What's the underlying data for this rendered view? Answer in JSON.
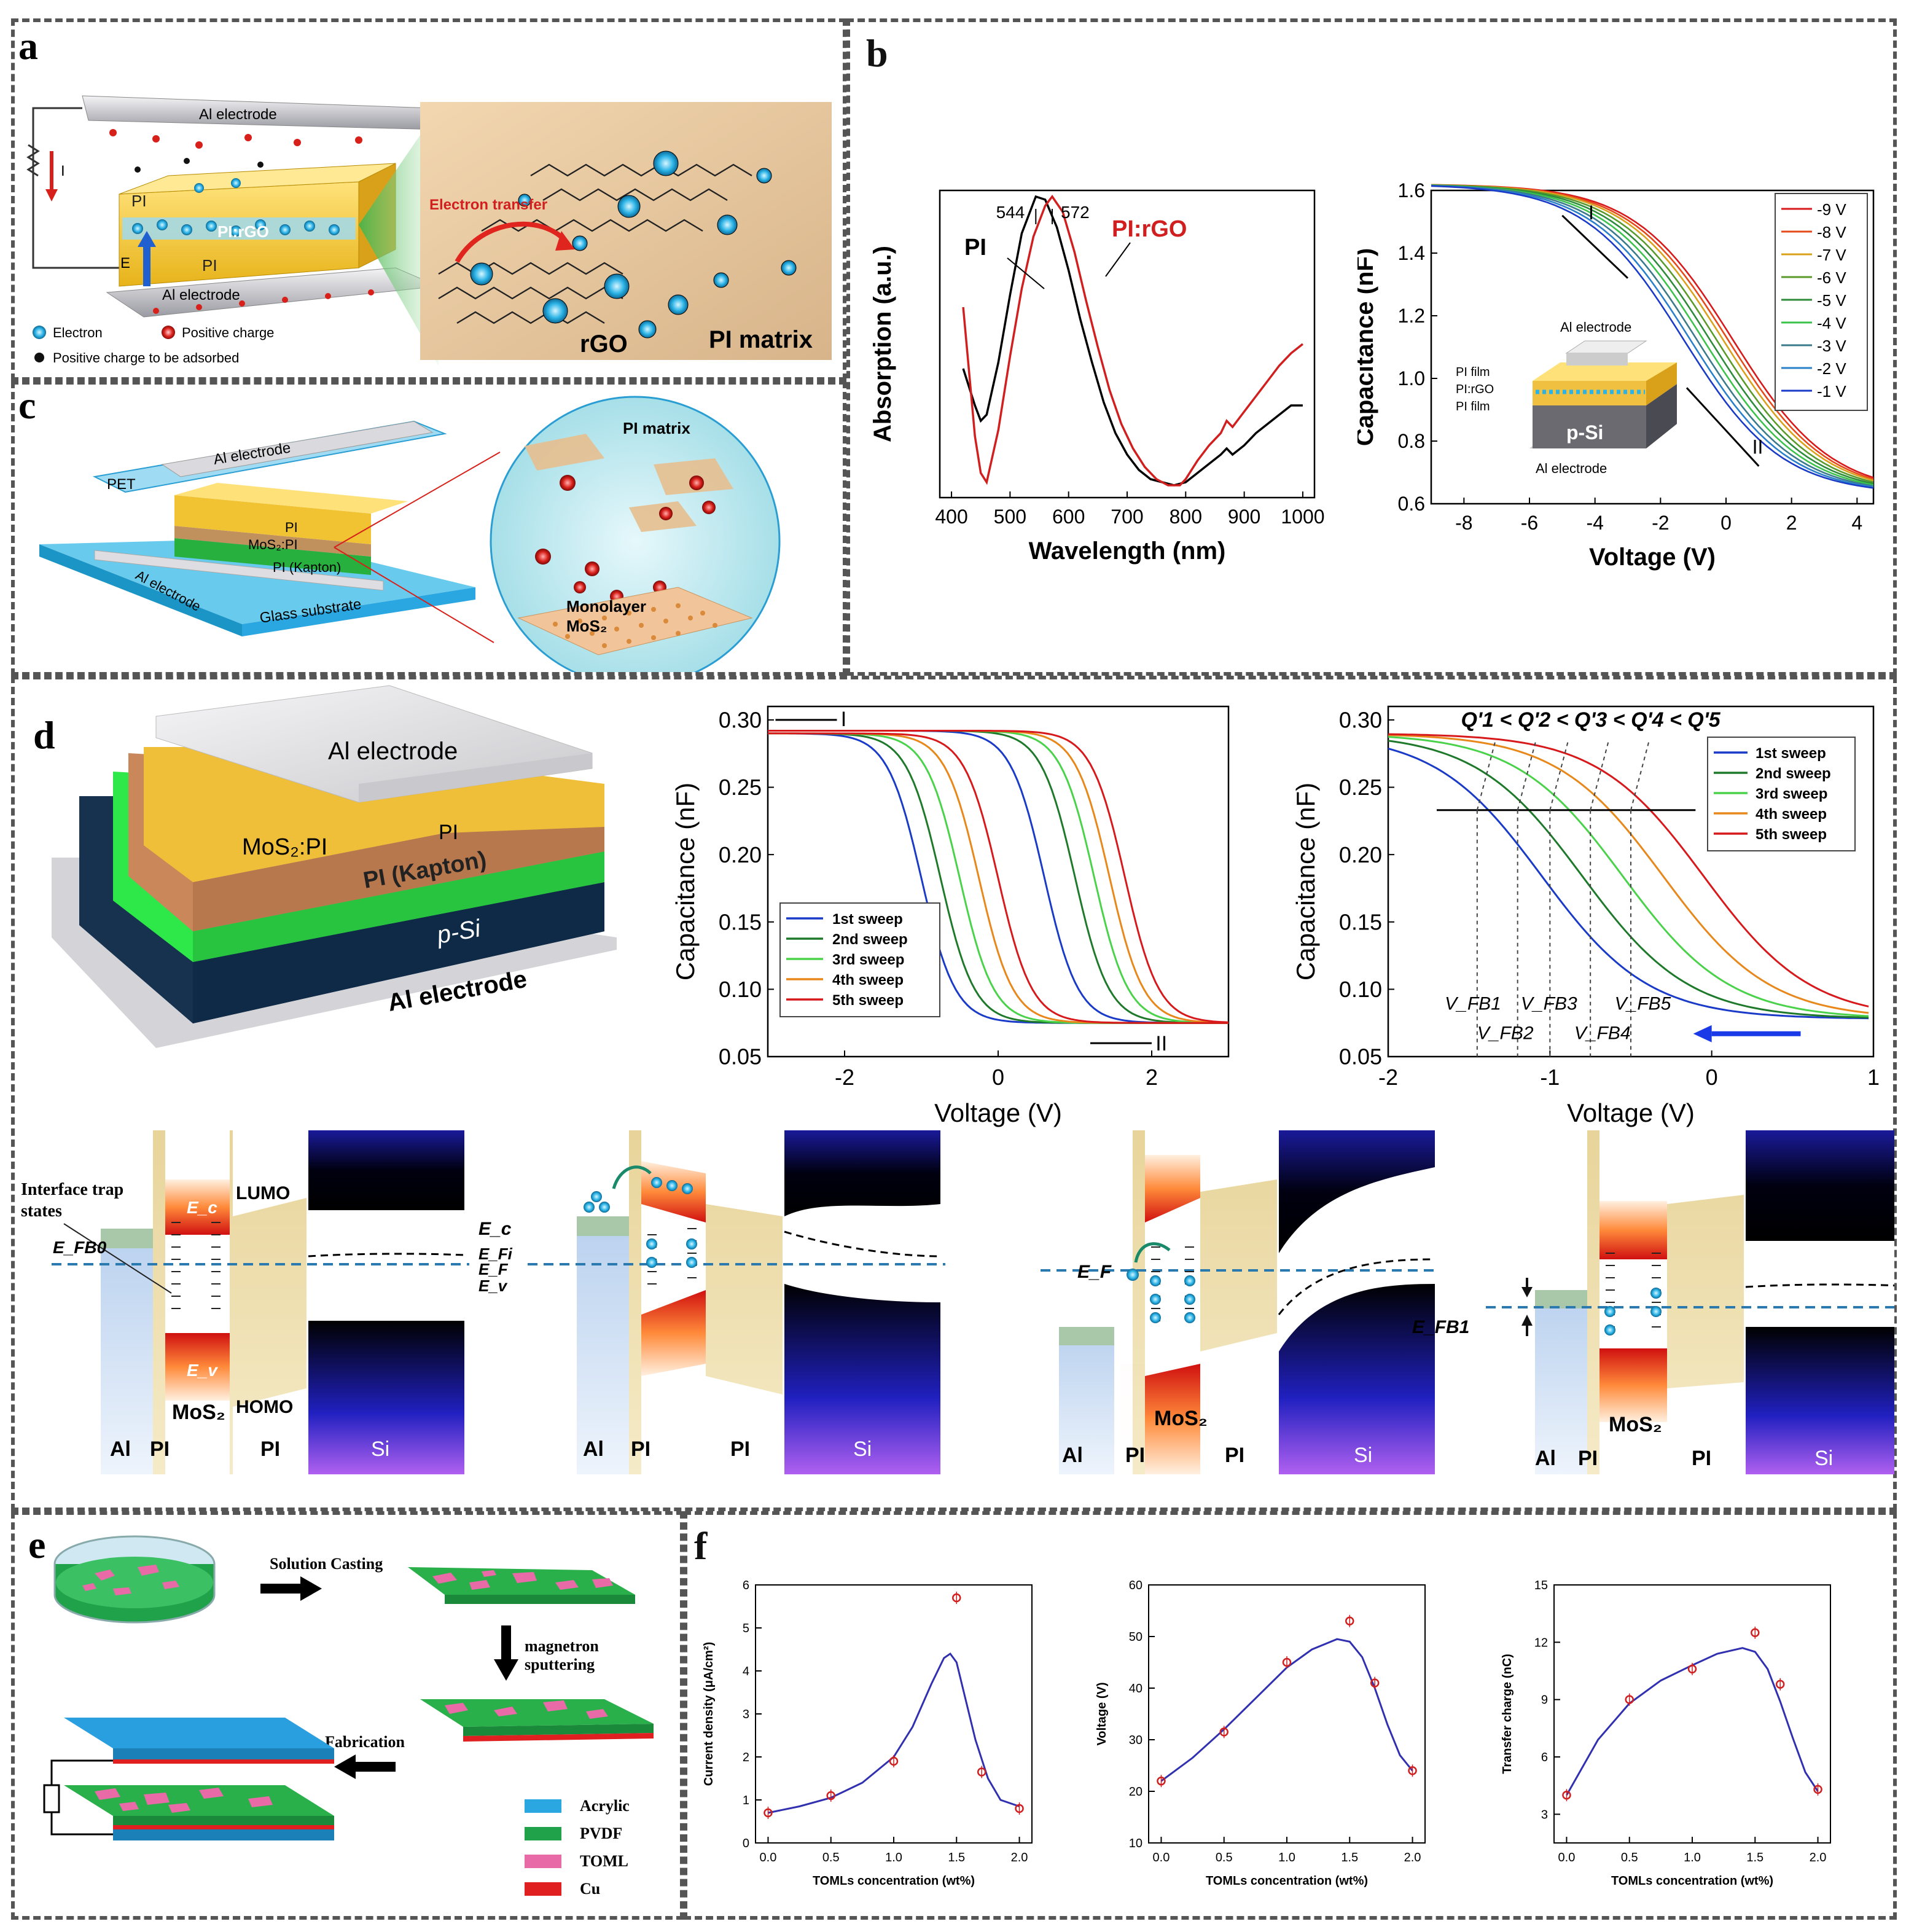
{
  "panels": {
    "a": "a",
    "b": "b",
    "c": "c",
    "d": "d",
    "e": "e",
    "f": "f"
  },
  "panel_a": {
    "top_electrode": "Al electrode",
    "bottom_electrode": "Al electrode",
    "current": "I",
    "field": "E",
    "pi_top": "PI",
    "pi_bottom": "PI",
    "blend": "PI:rGO",
    "transfer": "Electron transfer",
    "rgo": "rGO",
    "matrix": "PI matrix",
    "legend": [
      "Electron",
      "Positive charge",
      "Positive charge to be adsorbed"
    ]
  },
  "panel_c": {
    "pet": "PET",
    "top_electrode": "Al electrode",
    "pi": "PI",
    "blend": "MoS₂:PI",
    "kapton": "PI (Kapton)",
    "bottom_electrode": "Al electrode",
    "substrate": "Glass substrate",
    "matrix": "PI matrix",
    "monolayer": "Monolayer",
    "mos2": "MoS₂"
  },
  "panel_d_device": {
    "top": "Al electrode",
    "blend": "MoS₂:PI",
    "pi": "PI",
    "kapton": "PI (Kapton)",
    "si": "p-Si",
    "bottom": "Al electrode"
  },
  "bands": {
    "trap": "Interface trap",
    "states": "states",
    "lumo": "LUMO",
    "homo": "HOMO",
    "ec": "E_c",
    "efi": "E_Fi",
    "ef": "E_F",
    "ev": "E_v",
    "ec_in": "E_c",
    "ev_in": "E_v",
    "efb0": "E_FB0",
    "efb1": "E_FB1",
    "ef3": "E_F",
    "al": "Al",
    "pi": "PI",
    "si": "Si",
    "mos2": "MoS₂"
  },
  "panel_e": {
    "casting": "Solution Casting",
    "sputter1": "magnetron",
    "sputter2": "sputtering",
    "fabrication": "Fabrication",
    "legend": [
      "Acrylic",
      "PVDF",
      "TOML",
      "Cu"
    ],
    "legend_colors": [
      "#2aa7e0",
      "#1fa24a",
      "#e86aa6",
      "#e02020"
    ]
  },
  "chart_data": [
    {
      "id": "b-left",
      "type": "line",
      "xlabel": "Wavelength (nm)",
      "ylabel": "Absorption (a.u.)",
      "xlim": [
        380,
        1020
      ],
      "ylim": [
        0,
        1
      ],
      "xticks": [
        400,
        500,
        600,
        700,
        800,
        900,
        1000
      ],
      "annotations": [
        "544",
        "572"
      ],
      "series": [
        {
          "name": "PI",
          "color": "#000000",
          "x": [
            420,
            440,
            450,
            460,
            480,
            500,
            520,
            544,
            560,
            580,
            600,
            620,
            640,
            660,
            680,
            700,
            720,
            740,
            760,
            780,
            800,
            820,
            840,
            860,
            870,
            880,
            900,
            920,
            940,
            960,
            980,
            1000
          ],
          "y": [
            0.42,
            0.3,
            0.25,
            0.27,
            0.44,
            0.66,
            0.86,
            0.98,
            0.97,
            0.88,
            0.74,
            0.58,
            0.44,
            0.31,
            0.21,
            0.14,
            0.09,
            0.06,
            0.05,
            0.04,
            0.05,
            0.08,
            0.11,
            0.14,
            0.16,
            0.14,
            0.17,
            0.21,
            0.24,
            0.27,
            0.3,
            0.3
          ]
        },
        {
          "name": "PI:rGO",
          "color": "#d11f1f",
          "x": [
            420,
            440,
            450,
            460,
            480,
            500,
            520,
            540,
            560,
            572,
            590,
            610,
            630,
            650,
            670,
            690,
            710,
            730,
            750,
            770,
            790,
            800,
            820,
            840,
            860,
            870,
            880,
            900,
            920,
            940,
            960,
            980,
            1000
          ],
          "y": [
            0.62,
            0.2,
            0.08,
            0.05,
            0.22,
            0.46,
            0.68,
            0.85,
            0.95,
            0.98,
            0.93,
            0.8,
            0.64,
            0.49,
            0.35,
            0.24,
            0.16,
            0.1,
            0.06,
            0.04,
            0.04,
            0.06,
            0.12,
            0.17,
            0.21,
            0.25,
            0.23,
            0.28,
            0.33,
            0.38,
            0.43,
            0.47,
            0.5
          ]
        }
      ]
    },
    {
      "id": "b-right",
      "type": "line",
      "xlabel": "Voltage (V)",
      "ylabel": "Capacitance (nF)",
      "xlim": [
        -9,
        4.5
      ],
      "ylim": [
        0.6,
        1.6
      ],
      "xticks": [
        -8,
        -6,
        -4,
        -2,
        0,
        2,
        4
      ],
      "yticks": [
        0.6,
        0.8,
        1.0,
        1.2,
        1.4,
        1.6
      ],
      "annotations": [
        "I",
        "II"
      ],
      "inset": [
        "Al electrode",
        "PI film",
        "PI:rGO",
        "PI film",
        "p-Si",
        "Al electrode"
      ],
      "series": [
        {
          "name": "-9 V",
          "color": "#d7191c",
          "vfb": 0.2
        },
        {
          "name": "-8 V",
          "color": "#e6491a",
          "vfb": 0.05
        },
        {
          "name": "-7 V",
          "color": "#d9a01a",
          "vfb": -0.1
        },
        {
          "name": "-6 V",
          "color": "#5a9a2a",
          "vfb": -0.3
        },
        {
          "name": "-5 V",
          "color": "#2e8b3a",
          "vfb": -0.5
        },
        {
          "name": "-4 V",
          "color": "#3ac24a",
          "vfb": -0.7
        },
        {
          "name": "-3 V",
          "color": "#3a7a8a",
          "vfb": -0.9
        },
        {
          "name": "-2 V",
          "color": "#2a80c8",
          "vfb": -1.1
        },
        {
          "name": "-1 V",
          "color": "#1a3ac8",
          "vfb": -1.3
        }
      ]
    },
    {
      "id": "d-mid",
      "type": "line",
      "xlabel": "Voltage (V)",
      "ylabel": "Capacitance (nF)",
      "xlim": [
        -3,
        3
      ],
      "ylim": [
        0.05,
        0.31
      ],
      "xticks": [
        -2,
        0,
        2
      ],
      "yticks": [
        0.05,
        0.1,
        0.15,
        0.2,
        0.25,
        0.3
      ],
      "annotations": [
        "I",
        "II"
      ],
      "series": [
        {
          "name": "1st sweep",
          "color": "#1a3ac8",
          "v_backward": -1.0,
          "v_forward": 0.6
        },
        {
          "name": "2nd sweep",
          "color": "#1e7a2a",
          "v_backward": -0.75,
          "v_forward": 1.0
        },
        {
          "name": "3rd sweep",
          "color": "#4ad24a",
          "v_backward": -0.5,
          "v_forward": 1.25
        },
        {
          "name": "4th sweep",
          "color": "#e8871a",
          "v_backward": -0.25,
          "v_forward": 1.45
        },
        {
          "name": "5th sweep",
          "color": "#d7191c",
          "v_backward": 0.0,
          "v_forward": 1.65
        }
      ]
    },
    {
      "id": "d-right",
      "type": "line",
      "xlabel": "Voltage (V)",
      "ylabel": "Capacitance (nF)",
      "xlim": [
        -2,
        1
      ],
      "ylim": [
        0.05,
        0.31
      ],
      "xticks": [
        -2,
        -1,
        0,
        1
      ],
      "yticks": [
        0.05,
        0.1,
        0.15,
        0.2,
        0.25,
        0.3
      ],
      "title_annotation": "Q'1 < Q'2 < Q'3 < Q'4 < Q'5",
      "vfb_labels": [
        "V_FB1",
        "V_FB2",
        "V_FB3",
        "V_FB4",
        "V_FB5"
      ],
      "vfb_values": [
        -1.45,
        -1.2,
        -1.0,
        -0.75,
        -0.5
      ],
      "series": [
        {
          "name": "1st sweep",
          "color": "#1a3ac8",
          "v_mid": -1.05
        },
        {
          "name": "2nd sweep",
          "color": "#1e7a2a",
          "v_mid": -0.8
        },
        {
          "name": "3rd sweep",
          "color": "#4ad24a",
          "v_mid": -0.55
        },
        {
          "name": "4th sweep",
          "color": "#e8871a",
          "v_mid": -0.3
        },
        {
          "name": "5th sweep",
          "color": "#d7191c",
          "v_mid": -0.05
        }
      ]
    },
    {
      "id": "f1",
      "type": "scatter",
      "xlabel": "TOMLs concentration (wt%)",
      "ylabel": "Current density (μA/cm²)",
      "xlim": [
        -0.1,
        2.1
      ],
      "ylim": [
        0,
        6
      ],
      "xticks": [
        0.0,
        0.5,
        1.0,
        1.5,
        2.0
      ],
      "yticks": [
        0,
        1,
        2,
        3,
        4,
        5,
        6
      ],
      "x": [
        0.0,
        0.5,
        1.0,
        1.5,
        1.7,
        2.0
      ],
      "y": [
        0.7,
        1.1,
        1.9,
        5.7,
        1.65,
        0.8
      ],
      "fit_x": [
        0.0,
        0.25,
        0.5,
        0.75,
        1.0,
        1.15,
        1.3,
        1.4,
        1.45,
        1.5,
        1.55,
        1.65,
        1.75,
        1.85,
        2.0
      ],
      "fit_y": [
        0.7,
        0.85,
        1.05,
        1.4,
        2.0,
        2.7,
        3.7,
        4.3,
        4.4,
        4.2,
        3.6,
        2.4,
        1.5,
        1.0,
        0.85
      ]
    },
    {
      "id": "f2",
      "type": "scatter",
      "xlabel": "TOMLs concentration (wt%)",
      "ylabel": "Voltage (V)",
      "xlim": [
        -0.1,
        2.1
      ],
      "ylim": [
        10,
        60
      ],
      "xticks": [
        0.0,
        0.5,
        1.0,
        1.5,
        2.0
      ],
      "yticks": [
        10,
        20,
        30,
        40,
        50,
        60
      ],
      "x": [
        0.0,
        0.5,
        1.0,
        1.5,
        1.7,
        2.0
      ],
      "y": [
        22,
        31.5,
        45,
        53,
        41,
        24
      ],
      "fit_x": [
        0.0,
        0.25,
        0.5,
        0.75,
        1.0,
        1.2,
        1.4,
        1.5,
        1.6,
        1.7,
        1.8,
        1.9,
        2.0
      ],
      "fit_y": [
        22,
        26.5,
        32,
        38,
        44,
        47.5,
        49.5,
        49,
        46,
        40,
        33,
        27,
        24
      ]
    },
    {
      "id": "f3",
      "type": "scatter",
      "xlabel": "TOMLs concentration (wt%)",
      "ylabel": "Transfer charge (nC)",
      "xlim": [
        -0.1,
        2.1
      ],
      "ylim": [
        1.5,
        15
      ],
      "xticks": [
        0.0,
        0.5,
        1.0,
        1.5,
        2.0
      ],
      "yticks": [
        3,
        6,
        9,
        12,
        15
      ],
      "x": [
        0.0,
        0.5,
        1.0,
        1.5,
        1.7,
        2.0
      ],
      "y": [
        4.0,
        9.0,
        10.6,
        12.5,
        9.8,
        4.3
      ],
      "fit_x": [
        0.0,
        0.25,
        0.5,
        0.75,
        1.0,
        1.2,
        1.4,
        1.5,
        1.6,
        1.7,
        1.8,
        1.9,
        2.0
      ],
      "fit_y": [
        4.0,
        6.9,
        8.8,
        10.0,
        10.8,
        11.4,
        11.7,
        11.5,
        10.6,
        8.9,
        7.0,
        5.2,
        4.2
      ]
    }
  ]
}
